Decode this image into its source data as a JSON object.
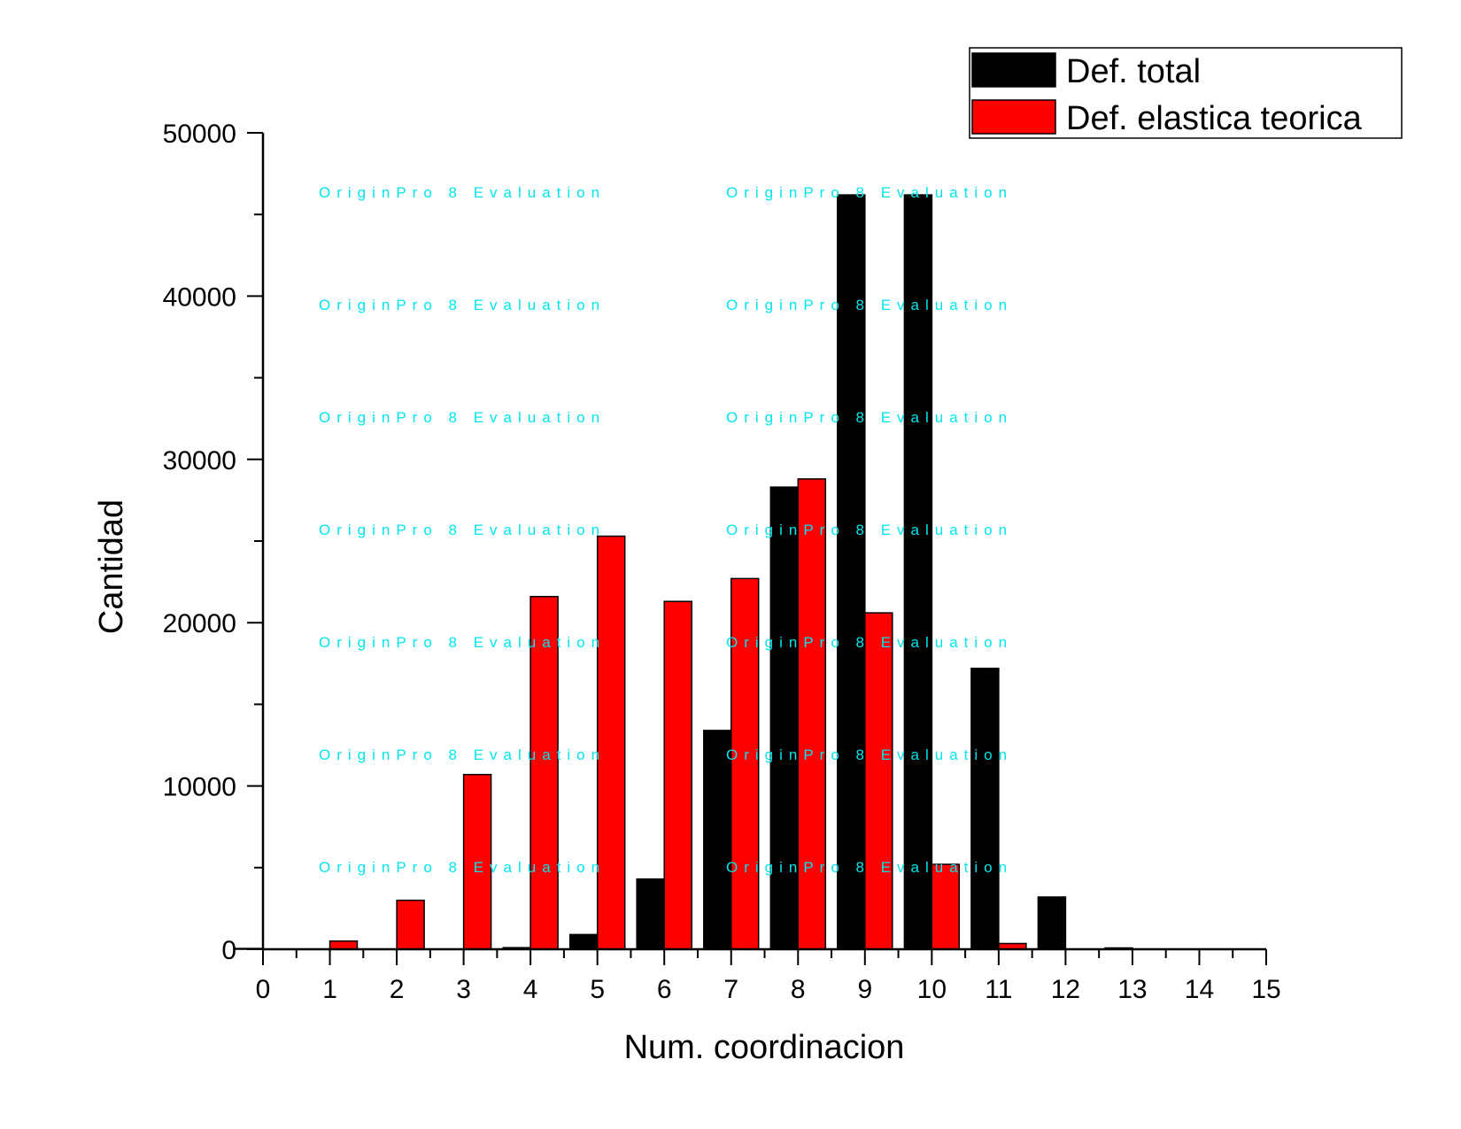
{
  "chart_data": {
    "type": "bar",
    "xlabel": "Num. coordinacion",
    "ylabel": "Cantidad",
    "x_ticks": [
      "0",
      "1",
      "2",
      "3",
      "4",
      "5",
      "6",
      "7",
      "8",
      "9",
      "10",
      "11",
      "12",
      "13",
      "14",
      "15"
    ],
    "y_ticks": [
      "0",
      "10000",
      "20000",
      "30000",
      "40000",
      "50000"
    ],
    "xlim": [
      0,
      15
    ],
    "ylim": [
      0,
      50000
    ],
    "grid": false,
    "legend_position": "top-right",
    "categories": [
      0,
      1,
      2,
      3,
      4,
      5,
      6,
      7,
      8,
      9,
      10,
      11,
      12,
      13,
      14
    ],
    "series": [
      {
        "name": "Def. total",
        "color": "#000000",
        "values": [
          50,
          0,
          0,
          0,
          100,
          900,
          4300,
          13400,
          28300,
          46200,
          46200,
          17200,
          3200,
          80,
          0
        ]
      },
      {
        "name": "Def. elastica teorica",
        "color": "#ff0000",
        "values": [
          0,
          500,
          3000,
          10700,
          21600,
          25300,
          21300,
          22700,
          28800,
          20600,
          5200,
          350,
          0,
          0,
          0
        ]
      }
    ],
    "watermark": "OriginPro 8 Evaluation"
  }
}
